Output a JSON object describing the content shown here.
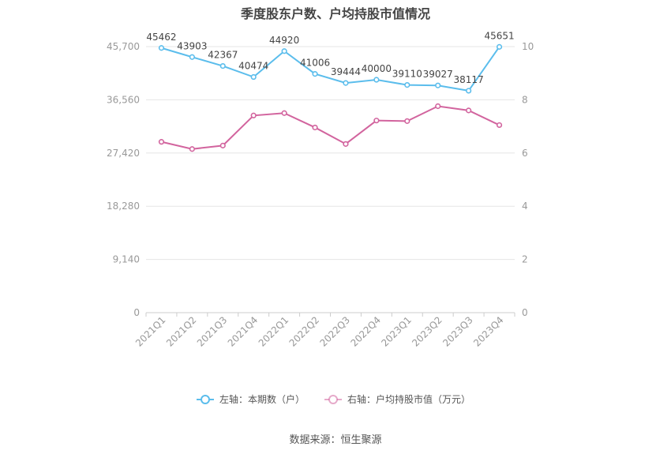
{
  "chart_data": {
    "type": "line",
    "title": "季度股东户数、户均持股市值情况",
    "categories": [
      "2021Q1",
      "2021Q2",
      "2021Q3",
      "2021Q4",
      "2022Q1",
      "2022Q2",
      "2022Q3",
      "2022Q4",
      "2023Q1",
      "2023Q2",
      "2023Q3",
      "2023Q4"
    ],
    "series": [
      {
        "name": "左轴：本期数（户）",
        "axis": "left",
        "color": "#5bbdec",
        "values": [
          45462,
          43903,
          42367,
          40474,
          44920,
          41006,
          39444,
          40000,
          39110,
          39027,
          38117,
          45651
        ],
        "labels": [
          "45462",
          "43903",
          "42367",
          "40474",
          "44920",
          "41006",
          "39444",
          "40000",
          "39110",
          "39027",
          "38117",
          "45651"
        ]
      },
      {
        "name": "右轴：户均持股市值（万元）",
        "axis": "right",
        "color": "#d2649e",
        "values": [
          6.42,
          6.15,
          6.28,
          7.41,
          7.5,
          6.96,
          6.34,
          7.22,
          7.2,
          7.76,
          7.6,
          7.05
        ]
      }
    ],
    "y_left": {
      "ylim": [
        0,
        45700
      ],
      "ticks": [
        "0",
        "9,140",
        "18,280",
        "27,420",
        "36,560",
        "45,700"
      ],
      "tick_values": [
        0,
        9140,
        18280,
        27420,
        36560,
        45700
      ]
    },
    "y_right": {
      "ylim": [
        0,
        10
      ],
      "ticks": [
        "0",
        "2",
        "4",
        "6",
        "8",
        "10"
      ],
      "tick_values": [
        0,
        2,
        4,
        6,
        8,
        10
      ]
    },
    "grid": true,
    "legend": "bottom-center"
  },
  "source": "数据来源：恒生聚源"
}
